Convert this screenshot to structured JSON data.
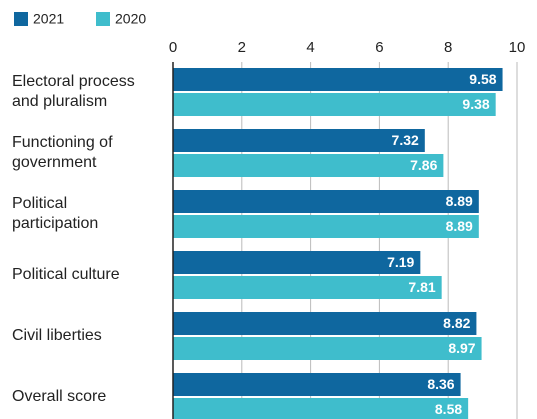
{
  "chart_data": {
    "type": "bar",
    "orientation": "horizontal",
    "categories": [
      "Electoral process\nand pluralism",
      "Functioning of\ngovernment",
      "Political\nparticipation",
      "Political culture",
      "Civil liberties",
      "Overall score"
    ],
    "series": [
      {
        "name": "2021",
        "color": "#0f679f",
        "values": [
          9.58,
          7.32,
          8.89,
          7.19,
          8.82,
          8.36
        ]
      },
      {
        "name": "2020",
        "color": "#3fbdcc",
        "values": [
          9.38,
          7.86,
          8.89,
          7.81,
          8.97,
          8.58
        ]
      }
    ],
    "xlim": [
      0,
      10
    ],
    "xticks": [
      0,
      2,
      4,
      6,
      8,
      10
    ],
    "grid": true,
    "legend": "top-left"
  }
}
